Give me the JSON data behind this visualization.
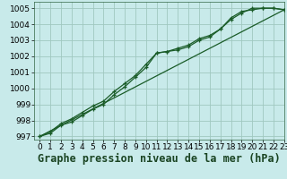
{
  "xlabel": "Graphe pression niveau de la mer (hPa)",
  "background_color": "#c8eaea",
  "grid_color": "#a0c8c0",
  "line_color": "#1a5c28",
  "xlim": [
    -0.5,
    23
  ],
  "ylim": [
    996.8,
    1005.4
  ],
  "yticks": [
    997,
    998,
    999,
    1000,
    1001,
    1002,
    1003,
    1004,
    1005
  ],
  "xticks": [
    0,
    1,
    2,
    3,
    4,
    5,
    6,
    7,
    8,
    9,
    10,
    11,
    12,
    13,
    14,
    15,
    16,
    17,
    18,
    19,
    20,
    21,
    22,
    23
  ],
  "line1_x": [
    0,
    1,
    2,
    3,
    4,
    5,
    6,
    7,
    8,
    9,
    10,
    11,
    12,
    13,
    14,
    15,
    16,
    17,
    18,
    19,
    20,
    21,
    22,
    23
  ],
  "line1_y": [
    997.0,
    997.2,
    997.7,
    997.9,
    998.3,
    998.7,
    999.0,
    999.6,
    1000.1,
    1000.7,
    1001.3,
    1002.2,
    1002.3,
    1002.4,
    1002.6,
    1003.0,
    1003.2,
    1003.7,
    1004.3,
    1004.7,
    1005.0,
    1005.0,
    1005.0,
    1004.9
  ],
  "line2_x": [
    0,
    1,
    2,
    3,
    4,
    5,
    6,
    7,
    8,
    9,
    10,
    11,
    12,
    13,
    14,
    15,
    16,
    17,
    18,
    19,
    20,
    21,
    22,
    23
  ],
  "line2_y": [
    997.0,
    997.3,
    997.8,
    998.1,
    998.5,
    998.9,
    999.2,
    999.8,
    1000.3,
    1000.8,
    1001.5,
    1002.2,
    1002.3,
    1002.5,
    1002.7,
    1003.1,
    1003.3,
    1003.7,
    1004.4,
    1004.8,
    1004.9,
    1005.0,
    1005.0,
    1004.9
  ],
  "line3_x": [
    0,
    23
  ],
  "line3_y": [
    997.0,
    1004.9
  ],
  "xlabel_fontsize": 8.5,
  "tick_fontsize": 6.5,
  "marker": "+",
  "markersize": 3.5,
  "linewidth": 0.9
}
